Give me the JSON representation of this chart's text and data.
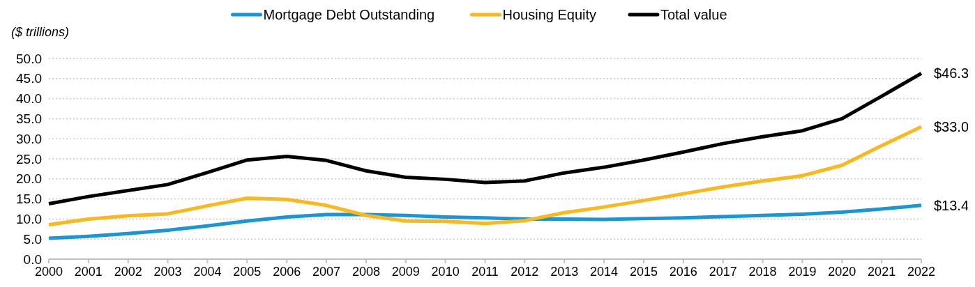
{
  "chart_data": {
    "type": "line",
    "ylabel": "($ trillions)",
    "categories": [
      "2000",
      "2001",
      "2002",
      "2003",
      "2004",
      "2005",
      "2006",
      "2007",
      "2008",
      "2009",
      "2010",
      "2011",
      "2012",
      "2013",
      "2014",
      "2015",
      "2016",
      "2017",
      "2018",
      "2019",
      "2020",
      "2021",
      "2022"
    ],
    "series": [
      {
        "name": "Mortgage Debt Outstanding",
        "color": "#1a96d4",
        "values": [
          5.2,
          5.7,
          6.4,
          7.2,
          8.3,
          9.5,
          10.5,
          11.1,
          11.1,
          10.9,
          10.5,
          10.3,
          10.0,
          10.0,
          9.9,
          10.1,
          10.3,
          10.6,
          10.9,
          11.2,
          11.7,
          12.5,
          13.4
        ]
      },
      {
        "name": "Housing Equity",
        "color": "#fbb81d",
        "values": [
          8.6,
          10.0,
          10.8,
          11.3,
          13.3,
          15.2,
          14.9,
          13.4,
          10.9,
          9.5,
          9.4,
          8.9,
          9.6,
          11.6,
          13.0,
          14.6,
          16.3,
          18.0,
          19.5,
          20.8,
          23.4,
          28.3,
          33.0
        ]
      },
      {
        "name": "Total value",
        "color": "#000000",
        "values": [
          13.8,
          15.6,
          17.1,
          18.6,
          21.6,
          24.7,
          25.6,
          24.6,
          22.0,
          20.4,
          19.9,
          19.1,
          19.5,
          21.5,
          22.9,
          24.7,
          26.7,
          28.8,
          30.5,
          32.0,
          35.0,
          40.6,
          46.3
        ]
      }
    ],
    "ylim": [
      0,
      50
    ],
    "yticks": [
      {
        "value": 0,
        "label": "0.0"
      },
      {
        "value": 5,
        "label": "5.0"
      },
      {
        "value": 10,
        "label": "10.0"
      },
      {
        "value": 15,
        "label": "15.0"
      },
      {
        "value": 20,
        "label": "20.0"
      },
      {
        "value": 25,
        "label": "25.0"
      },
      {
        "value": 30,
        "label": "30.0"
      },
      {
        "value": 35,
        "label": "35.0"
      },
      {
        "value": 40,
        "label": "40.0"
      },
      {
        "value": 45,
        "label": "45.0"
      },
      {
        "value": 50,
        "label": "50.0"
      }
    ],
    "grid": "y",
    "legend": "top",
    "marker": "none",
    "line_style": "solid",
    "annotations": [
      {
        "text": "$46.3",
        "x": "2022",
        "y": 46.3
      },
      {
        "text": "$33.0",
        "x": "2022",
        "y": 33.0
      },
      {
        "text": "$13.4",
        "x": "2022",
        "y": 13.4
      }
    ]
  }
}
